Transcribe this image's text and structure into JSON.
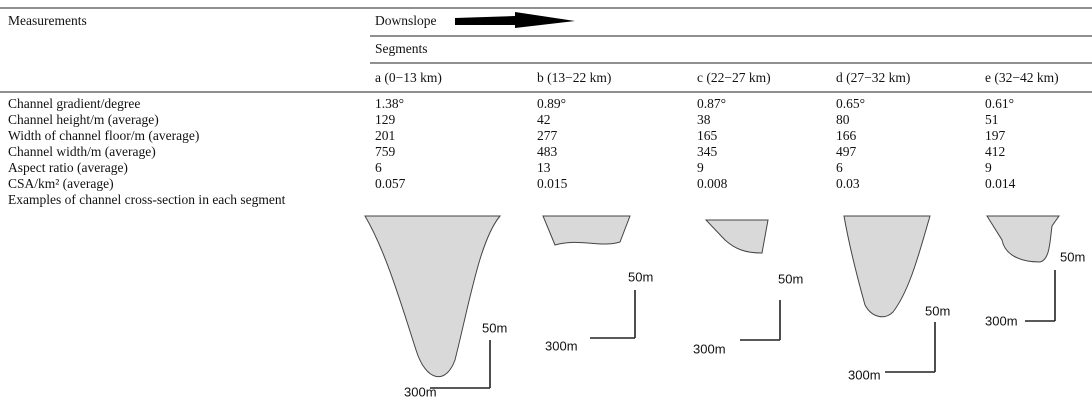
{
  "table": {
    "stub_header": "Measurements",
    "direction": "Downslope",
    "group_header": "Segments",
    "columns": [
      "a (0−13 km)",
      "b (13−22 km)",
      "c (22−27 km)",
      "d (27−32 km)",
      "e (32−42 km)"
    ],
    "rows": [
      {
        "label": "Channel gradient/degree",
        "values": [
          "1.38°",
          "0.89°",
          "0.87°",
          "0.65°",
          "0.61°"
        ]
      },
      {
        "label": "Channel height/m (average)",
        "values": [
          "129",
          "42",
          "38",
          "80",
          "51"
        ]
      },
      {
        "label": "Width of channel floor/m (average)",
        "values": [
          "201",
          "277",
          "165",
          "166",
          "197"
        ]
      },
      {
        "label": "Channel width/m (average)",
        "values": [
          "759",
          "483",
          "345",
          "497",
          "412"
        ]
      },
      {
        "label": "Aspect ratio (average)",
        "values": [
          "6",
          "13",
          "9",
          "6",
          "9"
        ]
      },
      {
        "label": "CSA/km² (average)",
        "values": [
          "0.057",
          "0.015",
          "0.008",
          "0.03",
          "0.014"
        ]
      }
    ],
    "examples_label": "Examples of channel cross-section in each segment",
    "scale_labels": [
      {
        "vertical": "50m",
        "horizontal": "300m"
      },
      {
        "vertical": "50m",
        "horizontal": "300m"
      },
      {
        "vertical": "50m",
        "horizontal": "300m"
      },
      {
        "vertical": "50m",
        "horizontal": "300m"
      },
      {
        "vertical": "50m",
        "horizontal": "300m"
      }
    ]
  }
}
